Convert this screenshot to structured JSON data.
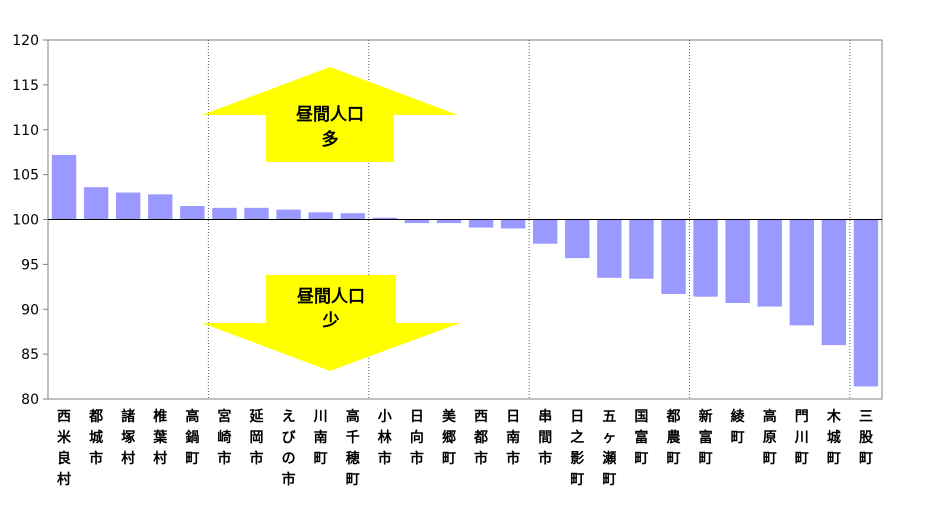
{
  "chart_data": {
    "type": "bar",
    "title": "",
    "xlabel": "",
    "ylabel": "",
    "ylim": [
      80,
      120
    ],
    "yticks": [
      80,
      85,
      90,
      95,
      100,
      105,
      110,
      115,
      120
    ],
    "baseline": 100,
    "bar_color": "#9999ff",
    "categories": [
      "西米良村",
      "都城市",
      "諸塚村",
      "椎葉村",
      "高鍋町",
      "宮崎市",
      "延岡市",
      "えびの市",
      "川南町",
      "高千穂町",
      "小林市",
      "日向市",
      "美郷町",
      "西都市",
      "日南市",
      "串間市",
      "日之影町",
      "五ヶ瀬町",
      "国富町",
      "都農町",
      "新富町",
      "綾町",
      "高原町",
      "門川町",
      "木城町",
      "三股町"
    ],
    "values": [
      107.2,
      103.6,
      103.0,
      102.8,
      101.5,
      101.3,
      101.3,
      101.1,
      100.8,
      100.7,
      100.2,
      99.6,
      99.6,
      99.1,
      99.0,
      97.3,
      95.7,
      93.5,
      93.4,
      91.7,
      91.4,
      90.7,
      90.3,
      88.2,
      86.0,
      81.4
    ],
    "group_dividers_after_index": [
      4,
      9,
      14,
      19,
      24
    ],
    "annotations": {
      "up": {
        "line1": "昼間人口",
        "line2": "多",
        "color": "#ffff00"
      },
      "down": {
        "line1": "昼間人口",
        "line2": "少",
        "color": "#ffff00"
      }
    }
  }
}
